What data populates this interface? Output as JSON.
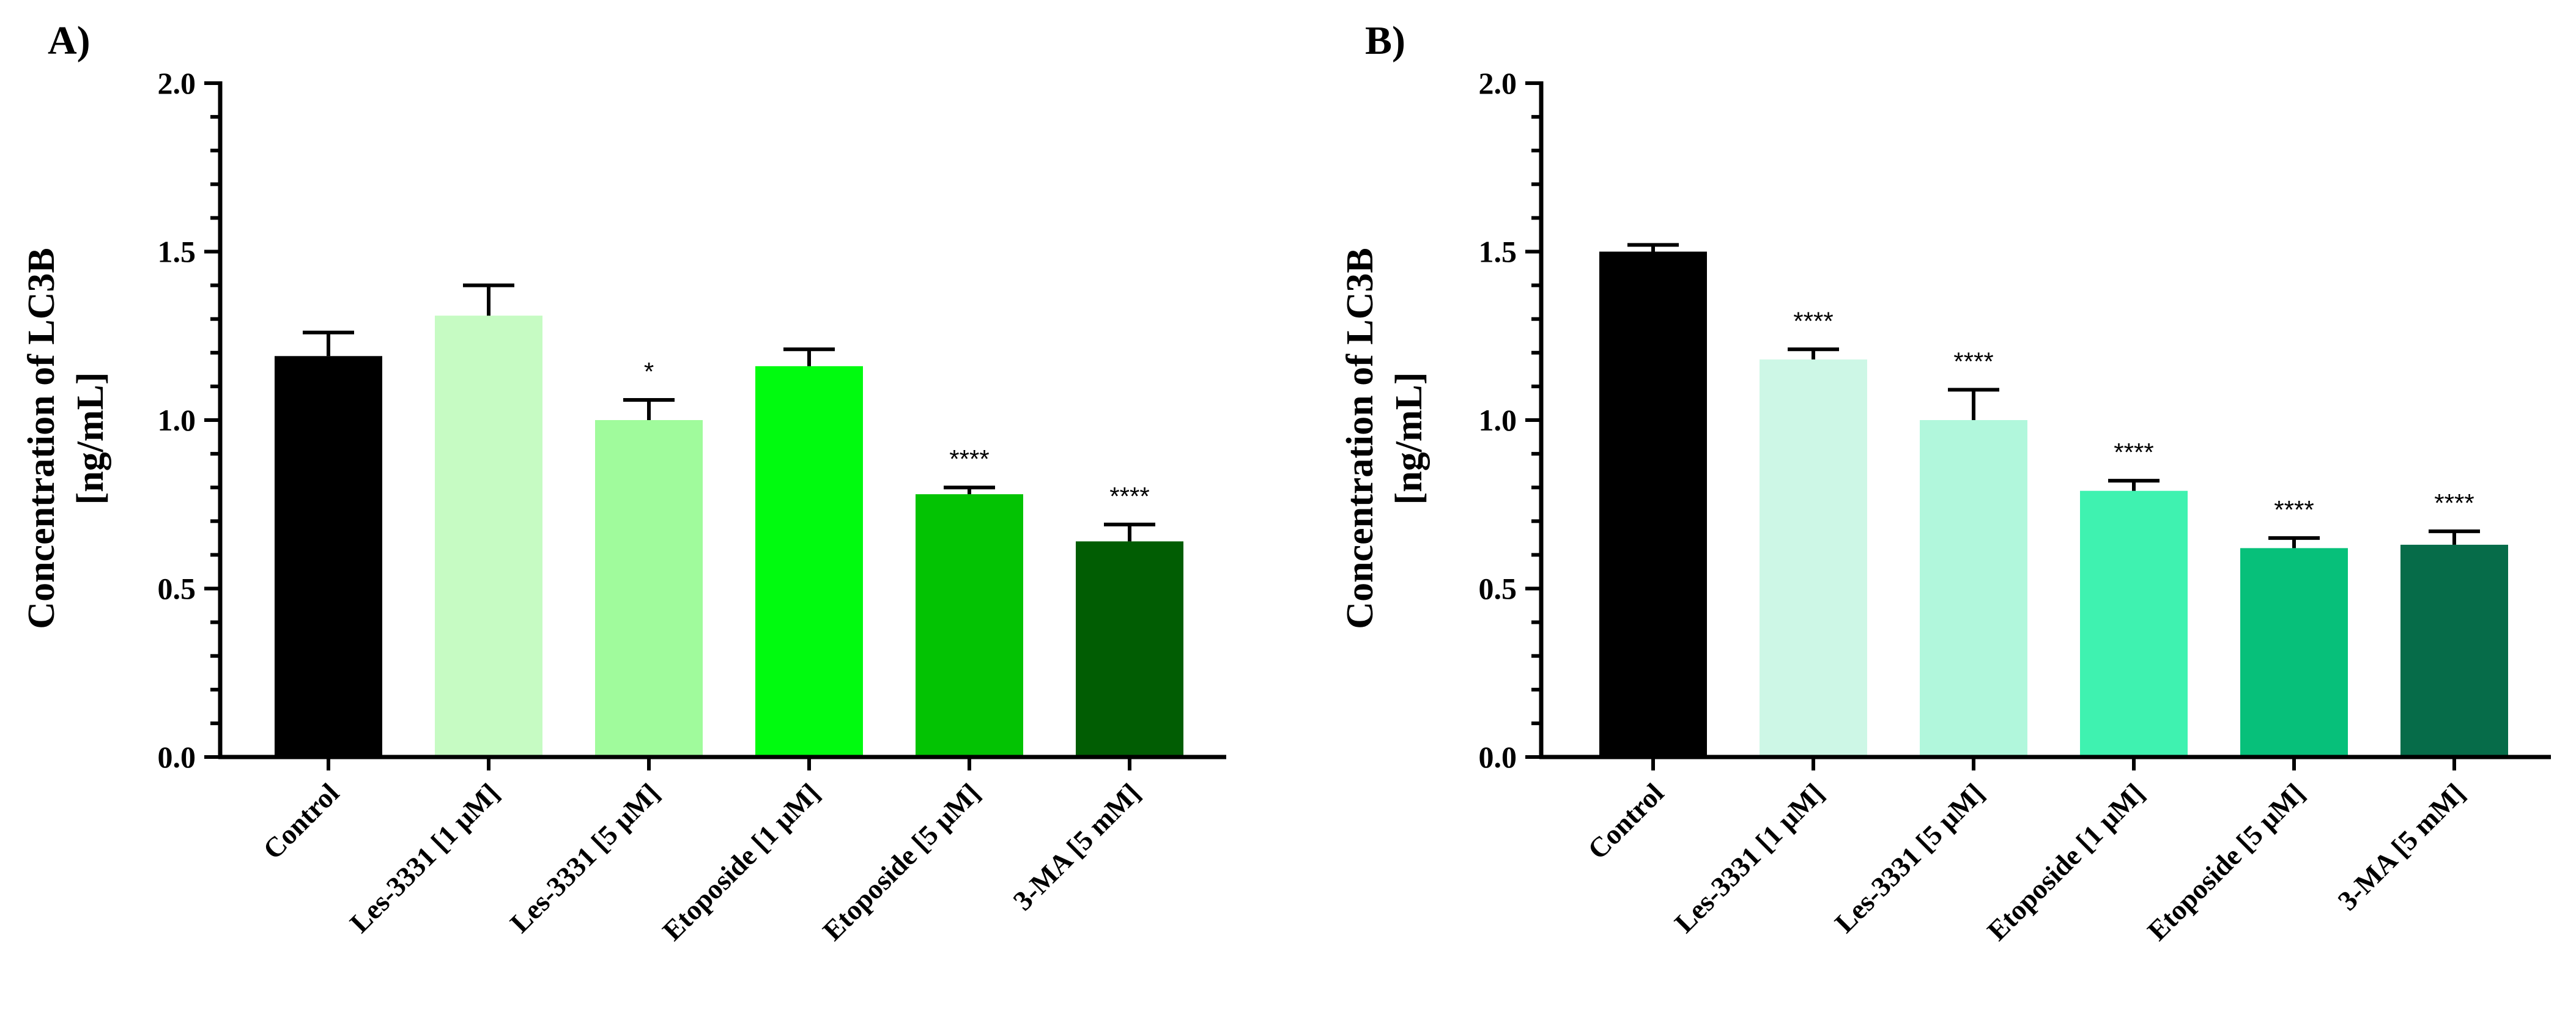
{
  "chart_data": [
    {
      "type": "bar",
      "panel": "A)",
      "ylabel_line1": "Concentration of LC3B",
      "ylabel_line2": "[ng/mL]",
      "ylim": [
        0,
        2.0
      ],
      "yticks": [
        "0.0",
        "0.5",
        "1.0",
        "1.5",
        "2.0"
      ],
      "categories": [
        "Control",
        "Les-3331 [1 μM]",
        "Les-3331 [5 μM]",
        "Etoposide [1 μM]",
        "Etoposide [5 μM]",
        "3-MA [5 mM]"
      ],
      "values": [
        1.19,
        1.31,
        1.0,
        1.16,
        0.78,
        0.64
      ],
      "errors": [
        0.07,
        0.09,
        0.06,
        0.05,
        0.02,
        0.05
      ],
      "significance": [
        "",
        "",
        "*",
        "",
        "****",
        "****"
      ],
      "colors": [
        "#000000",
        "#c6fbc3",
        "#a0fb9c",
        "#00fb0f",
        "#03c303",
        "#015d03"
      ]
    },
    {
      "type": "bar",
      "panel": "B)",
      "ylabel_line1": "Concentration of LC3B",
      "ylabel_line2": "[ng/mL]",
      "ylim": [
        0,
        2.0
      ],
      "yticks": [
        "0.0",
        "0.5",
        "1.0",
        "1.5",
        "2.0"
      ],
      "categories": [
        "Control",
        "Les-3331 [1 μM]",
        "Les-3331 [5 μM]",
        "Etoposide [1 μM]",
        "Etoposide [5 μM]",
        "3-MA [5 mM]"
      ],
      "values": [
        1.5,
        1.18,
        1.0,
        0.79,
        0.62,
        0.63
      ],
      "errors": [
        0.02,
        0.03,
        0.09,
        0.03,
        0.03,
        0.04
      ],
      "significance": [
        "",
        "****",
        "****",
        "****",
        "****",
        "****"
      ],
      "colors": [
        "#000000",
        "#cdf7e6",
        "#b1f7dc",
        "#3ff2b0",
        "#07c07a",
        "#066c49"
      ]
    }
  ]
}
